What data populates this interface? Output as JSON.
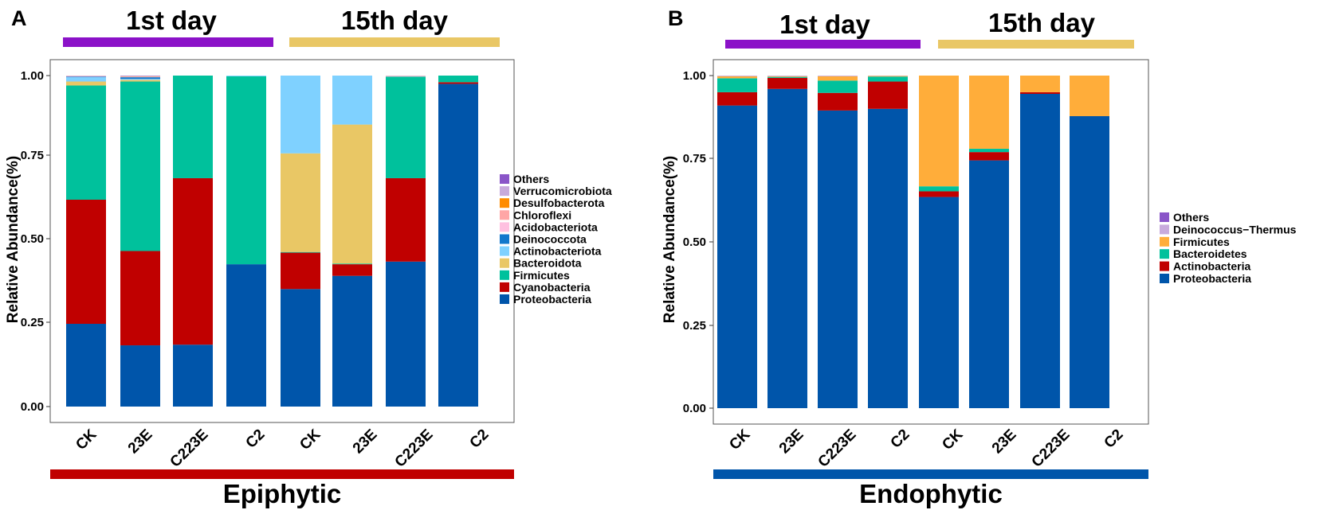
{
  "panels": [
    {
      "id": "A",
      "panel_label": "A",
      "day_labels": [
        "1st day",
        "15th day"
      ],
      "day_colors": [
        "#8b12c8",
        "#e9c765"
      ],
      "footer_label": "Epiphytic",
      "footer_color": "#c00000"
    },
    {
      "id": "B",
      "panel_label": "B",
      "day_labels": [
        "1st day",
        "15th day"
      ],
      "day_colors": [
        "#8b12c8",
        "#e9c765"
      ],
      "footer_label": "Endophytic",
      "footer_color": "#0055aa"
    }
  ],
  "chart_data": [
    {
      "type": "bar",
      "stacked": true,
      "title": "",
      "xlabel": "",
      "ylabel": "Relative Abundance(%)",
      "ylim": [
        0,
        1
      ],
      "yticks": [
        "0.00",
        "0.25",
        "0.50",
        "0.75",
        "1.00"
      ],
      "categories": [
        "CK",
        "23E",
        "C223E",
        "C2",
        "CK",
        "23E",
        "C223E",
        "C2"
      ],
      "groups": [
        {
          "label": "1st day",
          "categories_index": [
            0,
            1,
            2,
            3
          ]
        },
        {
          "label": "15th day",
          "categories_index": [
            4,
            5,
            6,
            7
          ]
        }
      ],
      "legend_title": "",
      "legend_position": "right",
      "legend_order_top_to_bottom": [
        "Others",
        "Verrucomicrobiota",
        "Desulfobacterota",
        "Chloroflexi",
        "Acidobacteriota",
        "Deinococcota",
        "Actinobacteriota",
        "Bacteroidota",
        "Firmicutes",
        "Cyanobacteria",
        "Proteobacteria"
      ],
      "series": [
        {
          "name": "Proteobacteria",
          "color": "#0055aa",
          "values": [
            0.25,
            0.185,
            0.187,
            0.43,
            0.355,
            0.395,
            0.438,
            0.975
          ]
        },
        {
          "name": "Cyanobacteria",
          "color": "#c00000",
          "values": [
            0.375,
            0.285,
            0.503,
            0.0,
            0.11,
            0.035,
            0.252,
            0.005
          ]
        },
        {
          "name": "Firmicutes",
          "color": "#00c19c",
          "values": [
            0.345,
            0.512,
            0.31,
            0.568,
            0.002,
            0.002,
            0.307,
            0.02
          ]
        },
        {
          "name": "Bacteroidota",
          "color": "#e9c765",
          "values": [
            0.012,
            0.005,
            0.0,
            0.0,
            0.298,
            0.42,
            0.0,
            0.0
          ]
        },
        {
          "name": "Actinobacteriota",
          "color": "#7fd1ff",
          "values": [
            0.013,
            0.003,
            0.0,
            0.002,
            0.235,
            0.148,
            0.0,
            0.0
          ]
        },
        {
          "name": "Deinococcota",
          "color": "#1177cc",
          "values": [
            0.002,
            0.005,
            0.0,
            0.0,
            0.0,
            0.0,
            0.0,
            0.0
          ]
        },
        {
          "name": "Acidobacteriota",
          "color": "#ffc0e0",
          "values": [
            0.001,
            0.001,
            0.0,
            0.0,
            0.0,
            0.0,
            0.001,
            0.0
          ]
        },
        {
          "name": "Chloroflexi",
          "color": "#ffa6a6",
          "values": [
            0.001,
            0.001,
            0.0,
            0.0,
            0.0,
            0.0,
            0.001,
            0.0
          ]
        },
        {
          "name": "Desulfobacterota",
          "color": "#ff8c00",
          "values": [
            0.0,
            0.001,
            0.0,
            0.0,
            0.0,
            0.0,
            0.0,
            0.0
          ]
        },
        {
          "name": "Verrucomicrobiota",
          "color": "#c8aadc",
          "values": [
            0.001,
            0.001,
            0.0,
            0.0,
            0.0,
            0.0,
            0.001,
            0.0
          ]
        },
        {
          "name": "Others",
          "color": "#8a55c8",
          "values": [
            0.0,
            0.001,
            0.0,
            0.0,
            0.0,
            0.0,
            0.0,
            0.0
          ]
        }
      ]
    },
    {
      "type": "bar",
      "stacked": true,
      "title": "",
      "xlabel": "",
      "ylabel": "Relative Abundance(%)",
      "ylim": [
        0,
        1
      ],
      "yticks": [
        "0.00",
        "0.25",
        "0.50",
        "0.75",
        "1.00"
      ],
      "categories": [
        "CK",
        "23E",
        "C223E",
        "C2",
        "CK",
        "23E",
        "C223E",
        "C2"
      ],
      "groups": [
        {
          "label": "1st day",
          "categories_index": [
            0,
            1,
            2,
            3
          ]
        },
        {
          "label": "15th day",
          "categories_index": [
            4,
            5,
            6,
            7
          ]
        }
      ],
      "legend_title": "",
      "legend_position": "right",
      "legend_order_top_to_bottom": [
        "Others",
        "Deinococcus−Thermus",
        "Firmicutes",
        "Bacteroidetes",
        "Actinobacteria",
        "Proteobacteria"
      ],
      "series": [
        {
          "name": "Proteobacteria",
          "color": "#0055aa",
          "values": [
            0.91,
            0.96,
            0.895,
            0.9,
            0.635,
            0.745,
            0.945,
            0.878
          ]
        },
        {
          "name": "Actinobacteria",
          "color": "#c00000",
          "values": [
            0.04,
            0.033,
            0.053,
            0.082,
            0.017,
            0.025,
            0.005,
            0.0
          ]
        },
        {
          "name": "Bacteroidetes",
          "color": "#00c19c",
          "values": [
            0.042,
            0.003,
            0.037,
            0.015,
            0.015,
            0.01,
            0.0,
            0.0
          ]
        },
        {
          "name": "Firmicutes",
          "color": "#ffad3a",
          "values": [
            0.006,
            0.002,
            0.013,
            0.002,
            0.333,
            0.22,
            0.05,
            0.122
          ]
        },
        {
          "name": "Deinococcus−Thermus",
          "color": "#c8aadc",
          "values": [
            0.002,
            0.002,
            0.002,
            0.001,
            0.0,
            0.0,
            0.0,
            0.0
          ]
        },
        {
          "name": "Others",
          "color": "#8a55c8",
          "values": [
            0.0,
            0.0,
            0.0,
            0.0,
            0.0,
            0.0,
            0.0,
            0.0
          ]
        }
      ]
    }
  ]
}
